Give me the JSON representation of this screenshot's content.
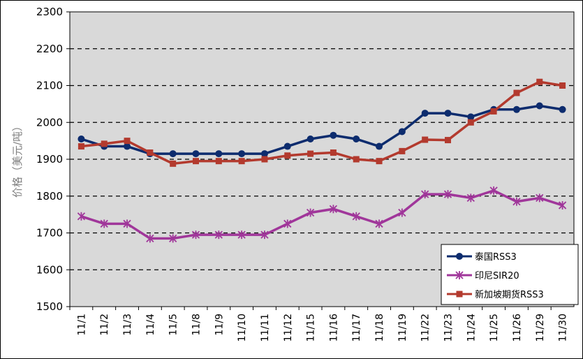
{
  "chart_data": {
    "type": "line",
    "ylabel": "价格（美元/吨）",
    "xlabel": "",
    "ylim": [
      1500,
      2300
    ],
    "yticks": [
      1500,
      1600,
      1700,
      1800,
      1900,
      2000,
      2100,
      2200,
      2300
    ],
    "grid": "horizontal dashed",
    "legend_position": "bottom-right",
    "categories": [
      "11/1",
      "11/2",
      "11/3",
      "11/4",
      "11/5",
      "11/8",
      "11/9",
      "11/10",
      "11/11",
      "11/12",
      "11/15",
      "11/16",
      "11/17",
      "11/18",
      "11/19",
      "11/22",
      "11/23",
      "11/24",
      "11/25",
      "11/26",
      "11/29",
      "11/30"
    ],
    "series": [
      {
        "name": "泰国RSS3",
        "marker": "circle",
        "color": "#0d2c6e",
        "values": [
          1955,
          1935,
          1935,
          1915,
          1915,
          1915,
          1915,
          1915,
          1915,
          1935,
          1955,
          1965,
          1955,
          1935,
          1975,
          2025,
          2025,
          2015,
          2035,
          2035,
          2045,
          2035
        ]
      },
      {
        "name": "印尼SIR20",
        "marker": "star",
        "color": "#a0369a",
        "values": [
          1745,
          1725,
          1725,
          1685,
          1685,
          1695,
          1695,
          1695,
          1695,
          1725,
          1755,
          1765,
          1745,
          1725,
          1755,
          1805,
          1805,
          1795,
          1815,
          1785,
          1795,
          1775
        ]
      },
      {
        "name": "新加坡期货RSS3",
        "marker": "square",
        "color": "#b33a2e",
        "values": [
          1935,
          1942,
          1950,
          1918,
          1888,
          1895,
          1895,
          1895,
          1900,
          1910,
          1915,
          1918,
          1900,
          1895,
          1922,
          1953,
          1952,
          2000,
          2030,
          2080,
          2110,
          2100
        ]
      }
    ]
  }
}
